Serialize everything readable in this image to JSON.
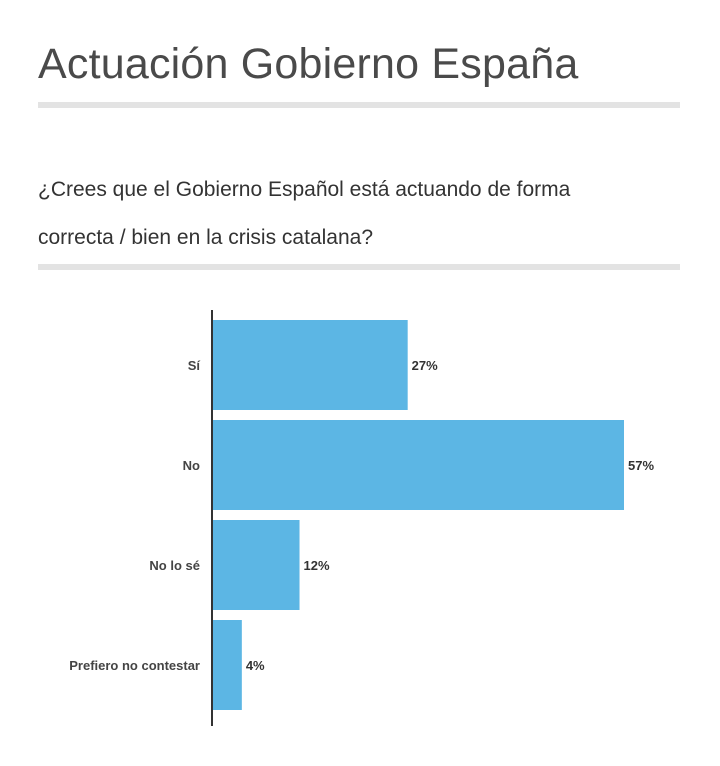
{
  "header": {
    "title": "Actuación Gobierno España",
    "question_line1": "¿Crees que el Gobierno Español está actuando de forma",
    "question_line2": "correcta / bien en la crisis catalana?"
  },
  "colors": {
    "bar": "#5cb6e4",
    "axis": "#333333",
    "rule": "#e3e3e3"
  },
  "chart_data": {
    "type": "bar",
    "orientation": "horizontal",
    "categories": [
      "Sí",
      "No",
      "No lo sé",
      "Prefiero no contestar"
    ],
    "values": [
      27,
      57,
      12,
      4
    ],
    "value_labels": [
      "27%",
      "57%",
      "12%",
      "4%"
    ],
    "unit": "%",
    "title": "",
    "xlabel": "",
    "ylabel": "",
    "xlim": [
      0,
      57
    ],
    "grid": false,
    "legend": "none"
  }
}
